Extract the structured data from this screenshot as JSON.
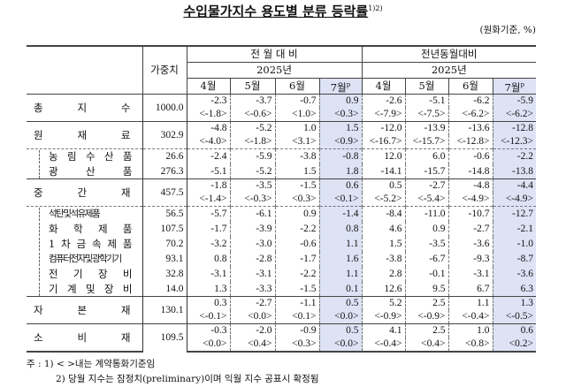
{
  "title": "수입물가지수 용도별 분류 등락률",
  "title_sup": "1)2)",
  "unit": "(원화기준, %)",
  "header": {
    "weight": "가중치",
    "group1": "전 월 대 비",
    "group2": "전년동월대비",
    "year": "2025년",
    "months": [
      "4월",
      "5월",
      "6월",
      "7월"
    ],
    "prelim_mark": "p"
  },
  "highlight_color": "#dde3f5",
  "rows": [
    {
      "label": [
        "총",
        "지",
        "수"
      ],
      "weight": "1000.0",
      "values": [
        "-2.3",
        "-3.7",
        "-0.7",
        "0.9",
        "-2.6",
        "-5.1",
        "-6.2",
        "-5.9"
      ],
      "contract": [
        "<-1.8>",
        "<-0.6>",
        "<1.0>",
        "<0.3>",
        "<-7.9>",
        "<-7.5>",
        "<-6.2>",
        "<-6.2>"
      ]
    },
    {
      "label": [
        "원",
        "재",
        "료"
      ],
      "weight": "302.9",
      "values": [
        "-4.8",
        "-5.2",
        "1.0",
        "1.5",
        "-12.0",
        "-13.9",
        "-13.6",
        "-12.8"
      ],
      "contract": [
        "<-4.0>",
        "<-1.8>",
        "<3.1>",
        "<0.9>",
        "<-16.7>",
        "<-15.7>",
        "<-12.8>",
        "<-12.3>"
      ],
      "sub": [
        {
          "label": [
            "농",
            "림",
            "수",
            "산",
            "품"
          ],
          "weight": "26.6",
          "values": [
            "-2.4",
            "-5.9",
            "-3.8",
            "-0.8",
            "12.0",
            "6.0",
            "-0.6",
            "-2.2"
          ]
        },
        {
          "label": [
            "광",
            "산",
            "품"
          ],
          "weight": "276.3",
          "values": [
            "-5.1",
            "-5.2",
            "1.5",
            "1.8",
            "-14.1",
            "-15.7",
            "-14.8",
            "-13.8"
          ]
        }
      ]
    },
    {
      "label": [
        "중",
        "간",
        "재"
      ],
      "weight": "457.5",
      "values": [
        "-1.8",
        "-3.5",
        "-1.5",
        "0.6",
        "0.5",
        "-2.7",
        "-4.8",
        "-4.4"
      ],
      "contract": [
        "<-1.4>",
        "<-0.3>",
        "<0.3>",
        "<0.1>",
        "<-5.2>",
        "<-5.4>",
        "<-4.9>",
        "<-4.9>"
      ],
      "sub": [
        {
          "label": [
            "석탄및석유제품"
          ],
          "weight": "56.5",
          "values": [
            "-5.7",
            "-6.1",
            "0.9",
            "-1.4",
            "-8.4",
            "-11.0",
            "-10.7",
            "-12.7"
          ]
        },
        {
          "label": [
            "화",
            "학",
            "제",
            "품"
          ],
          "weight": "107.5",
          "values": [
            "-1.7",
            "-3.9",
            "-2.2",
            "0.8",
            "4.6",
            "0.9",
            "-2.7",
            "-2.1"
          ]
        },
        {
          "label": [
            "1",
            "차",
            "금",
            "속",
            "제",
            "품"
          ],
          "weight": "70.2",
          "values": [
            "-3.2",
            "-3.0",
            "-0.6",
            "1.1",
            "1.5",
            "-3.5",
            "-3.6",
            "-1.0"
          ]
        },
        {
          "label": [
            "컴퓨터전자및광학기기"
          ],
          "weight": "93.1",
          "values": [
            "0.8",
            "-2.8",
            "-1.7",
            "1.6",
            "-3.8",
            "-6.7",
            "-9.3",
            "-8.7"
          ]
        },
        {
          "label": [
            "전",
            "기",
            "장",
            "비"
          ],
          "weight": "32.8",
          "values": [
            "-3.1",
            "-3.1",
            "-2.2",
            "1.1",
            "2.8",
            "-0.1",
            "-3.1",
            "-3.6"
          ]
        },
        {
          "label": [
            "기",
            "계",
            "및",
            "장",
            "비"
          ],
          "weight": "14.0",
          "values": [
            "1.3",
            "-3.3",
            "-1.5",
            "0.1",
            "12.6",
            "9.5",
            "6.7",
            "6.3"
          ]
        }
      ]
    },
    {
      "label": [
        "자",
        "본",
        "재"
      ],
      "weight": "130.1",
      "values": [
        "0.3",
        "-2.7",
        "-1.1",
        "0.5",
        "5.2",
        "2.5",
        "1.1",
        "1.3"
      ],
      "contract": [
        "<-0.1>",
        "<0.0>",
        "<0.1>",
        "<0.0>",
        "<-0.9>",
        "<-0.9>",
        "<-0.4>",
        "<-0.5>"
      ]
    },
    {
      "label": [
        "소",
        "비",
        "재"
      ],
      "weight": "109.5",
      "values": [
        "-0.3",
        "-2.0",
        "-0.9",
        "0.5",
        "4.1",
        "2.5",
        "1.0",
        "0.6"
      ],
      "contract": [
        "<0.0>",
        "<0.4>",
        "<0.3>",
        "<0.0>",
        "<-0.4>",
        "<0.4>",
        "<0.8>",
        "<0.2>"
      ]
    }
  ],
  "notes": [
    "주 :  1) < >내는 계약통화기준임",
    "2) 당월 지수는 잠정치(preliminary)이며 익월 지수 공표시 확정됨"
  ]
}
